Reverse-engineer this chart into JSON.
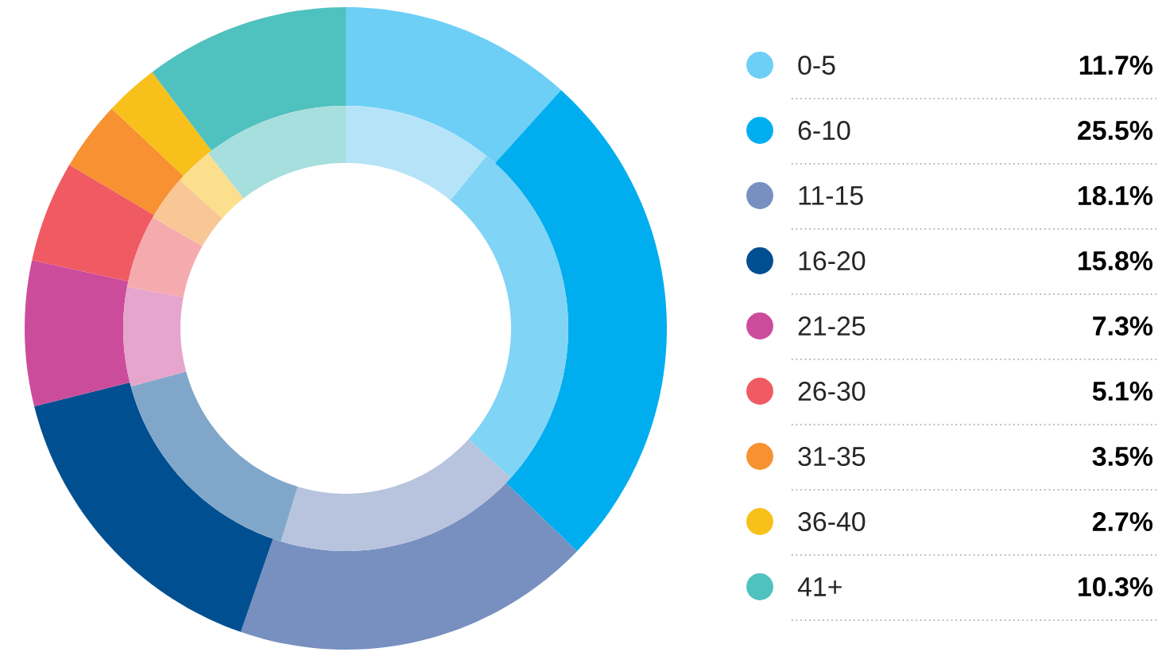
{
  "chart_data": {
    "type": "donut",
    "categories": [
      "0-5",
      "6-10",
      "11-15",
      "16-20",
      "21-25",
      "26-30",
      "31-35",
      "36-40",
      "41+"
    ],
    "series": [
      {
        "values": [
          11.7,
          25.5,
          18.1,
          15.8,
          7.3,
          5.1,
          3.5,
          2.7,
          10.3
        ],
        "value_labels": [
          "11.7%",
          "25.5%",
          "18.1%",
          "15.8%",
          "7.3%",
          "5.1%",
          "3.5%",
          "2.7%",
          "10.3%"
        ],
        "colors": [
          "#6dcff6",
          "#00aeef",
          "#7790c0",
          "#004f91",
          "#cc4c9c",
          "#f05a62",
          "#f79131",
          "#f8c01b",
          "#4fc1be"
        ]
      },
      {
        "values": [
          10.9,
          25.8,
          18.0,
          16.1,
          7.2,
          5.3,
          3.3,
          2.8,
          10.6
        ],
        "colors": [
          "#b5e4f8",
          "#80d4f6",
          "#b8c4de",
          "#80a7ca",
          "#e5a5cc",
          "#f5aaae",
          "#f9c796",
          "#fbdf8d",
          "#a6dfdd"
        ]
      }
    ],
    "legend": "right"
  }
}
